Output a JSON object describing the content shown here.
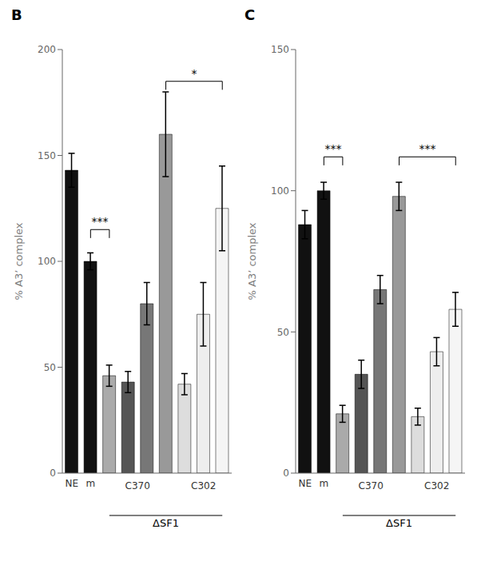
{
  "chart_data": [
    {
      "type": "bar",
      "title": "B",
      "ylabel": "% A3’ complex",
      "categories": [
        "NE",
        "m",
        null,
        null,
        null,
        null,
        null,
        null,
        null
      ],
      "values": [
        143,
        100,
        46,
        43,
        80,
        160,
        42,
        75,
        125
      ],
      "errors": [
        8,
        4,
        5,
        5,
        10,
        20,
        5,
        15,
        20
      ],
      "colors": [
        "#111111",
        "#111111",
        "#aaaaaa",
        "#555555",
        "#777777",
        "#999999",
        "#dddddd",
        "#eeeeee",
        "#f5f5f5"
      ],
      "ylim": [
        0,
        200
      ],
      "yticks": [
        0,
        50,
        100,
        150,
        200
      ],
      "groups": [
        {
          "label": "C370",
          "from": 2,
          "to": 5
        },
        {
          "label": "C302",
          "from": 6,
          "to": 8
        }
      ],
      "bracket": {
        "label": "ΔSF1",
        "from": 2,
        "to": 8
      },
      "annotations": [
        {
          "text": "***",
          "y": 115,
          "from": 1,
          "to": 2
        },
        {
          "text": "*",
          "y": 185,
          "from": 5,
          "to": 8
        }
      ]
    },
    {
      "type": "bar",
      "title": "C",
      "ylabel": "% A3’ complex",
      "categories": [
        "NE",
        "m",
        null,
        null,
        null,
        null,
        null,
        null,
        null
      ],
      "values": [
        88,
        100,
        21,
        35,
        65,
        98,
        20,
        43,
        58
      ],
      "errors": [
        5,
        3,
        3,
        5,
        5,
        5,
        3,
        5,
        6
      ],
      "colors": [
        "#111111",
        "#111111",
        "#aaaaaa",
        "#555555",
        "#777777",
        "#999999",
        "#dddddd",
        "#eeeeee",
        "#f5f5f5"
      ],
      "ylim": [
        0,
        150
      ],
      "yticks": [
        0,
        50,
        100,
        150
      ],
      "groups": [
        {
          "label": "C370",
          "from": 2,
          "to": 5
        },
        {
          "label": "C302",
          "from": 6,
          "to": 8
        }
      ],
      "bracket": {
        "label": "ΔSF1",
        "from": 2,
        "to": 8
      },
      "annotations": [
        {
          "text": "***",
          "y": 112,
          "from": 1,
          "to": 2
        },
        {
          "text": "***",
          "y": 112,
          "from": 5,
          "to": 8
        }
      ]
    }
  ]
}
